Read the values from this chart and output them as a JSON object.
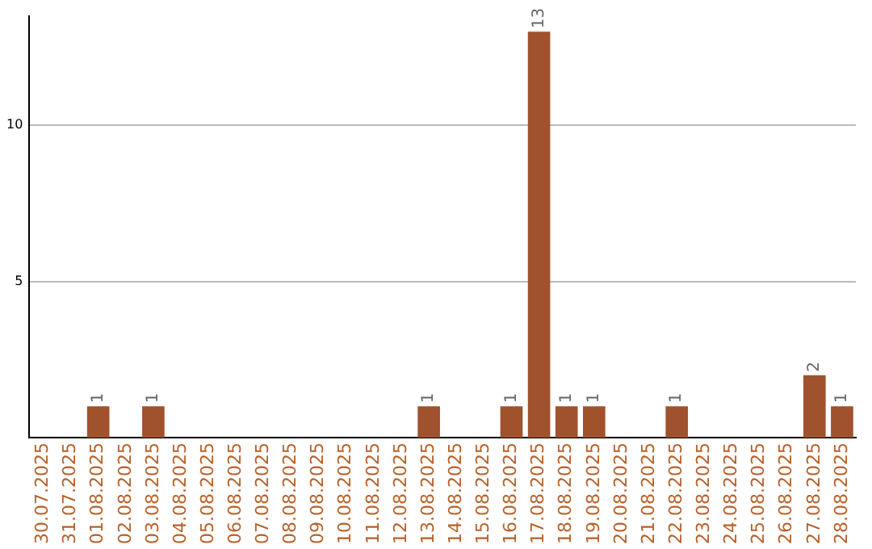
{
  "chart_data": {
    "type": "bar",
    "categories": [
      "30.07.2025",
      "31.07.2025",
      "01.08.2025",
      "02.08.2025",
      "03.08.2025",
      "04.08.2025",
      "05.08.2025",
      "06.08.2025",
      "07.08.2025",
      "08.08.2025",
      "09.08.2025",
      "10.08.2025",
      "11.08.2025",
      "12.08.2025",
      "13.08.2025",
      "14.08.2025",
      "15.08.2025",
      "16.08.2025",
      "17.08.2025",
      "18.08.2025",
      "19.08.2025",
      "20.08.2025",
      "21.08.2025",
      "22.08.2025",
      "23.08.2025",
      "24.08.2025",
      "25.08.2025",
      "26.08.2025",
      "27.08.2025",
      "28.08.2025"
    ],
    "values": [
      0,
      0,
      1,
      0,
      1,
      0,
      0,
      0,
      0,
      0,
      0,
      0,
      0,
      0,
      1,
      0,
      0,
      1,
      13,
      1,
      1,
      0,
      0,
      1,
      0,
      0,
      0,
      0,
      2,
      1
    ],
    "value_labels": [
      null,
      null,
      "1",
      null,
      "1",
      null,
      null,
      null,
      null,
      null,
      null,
      null,
      null,
      null,
      "1",
      null,
      null,
      "1",
      "13",
      "1",
      "1",
      null,
      null,
      "1",
      null,
      null,
      null,
      null,
      "2",
      "1"
    ],
    "color": "#a0522d",
    "ylim": [
      0,
      13.5
    ],
    "yticks": [
      5,
      10
    ],
    "grid": "y",
    "legend": false
  }
}
